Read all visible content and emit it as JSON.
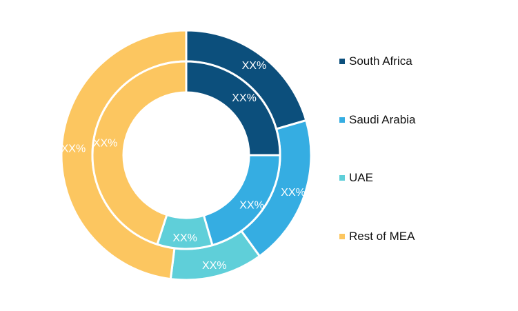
{
  "chart_data": {
    "type": "pie",
    "variant": "nested-donut",
    "categories": [
      "South Africa",
      "Saudi Arabia",
      "UAE",
      "Rest of MEA"
    ],
    "colors": [
      "#0c4f7c",
      "#35ade2",
      "#5fcfd9",
      "#fcc660"
    ],
    "series": [
      {
        "ring": "outer",
        "values": [
          20.5,
          19.5,
          12.0,
          48.0
        ],
        "labels": [
          "XX%",
          "XX%",
          "XX%",
          "XX%"
        ]
      },
      {
        "ring": "inner",
        "values": [
          25.0,
          20.5,
          9.5,
          45.0
        ],
        "labels": [
          "XX%",
          "XX%",
          "XX%",
          "XX%"
        ]
      }
    ],
    "legend": {
      "position": "right",
      "entries": [
        "South Africa",
        "Saudi Arabia",
        "UAE",
        "Rest of MEA"
      ]
    }
  }
}
